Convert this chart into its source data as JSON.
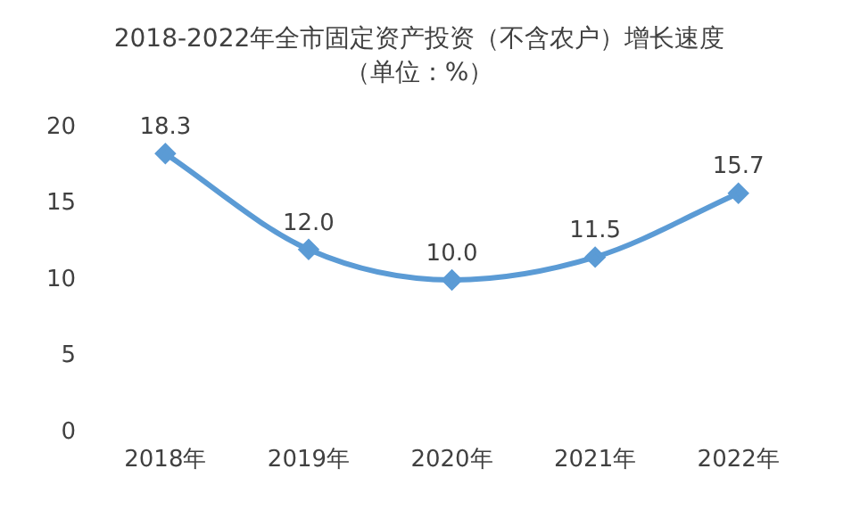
{
  "chart_data": {
    "type": "line",
    "title": "2018-2022年全市固定资产投资（不含农户）增长速度",
    "subtitle": "（单位：%）",
    "categories": [
      "2018年",
      "2019年",
      "2020年",
      "2021年",
      "2022年"
    ],
    "series": [
      {
        "color": "#5b9bd5",
        "values": [
          18.3,
          12.0,
          10.0,
          11.5,
          15.7
        ],
        "value_labels": [
          "18.3",
          "12.0",
          "10.0",
          "11.5",
          "15.7"
        ]
      }
    ],
    "ylim": [
      0,
      20
    ],
    "yticks": [
      0,
      5,
      10,
      15,
      20
    ],
    "marker": "diamond",
    "grid": false,
    "legend": false
  }
}
